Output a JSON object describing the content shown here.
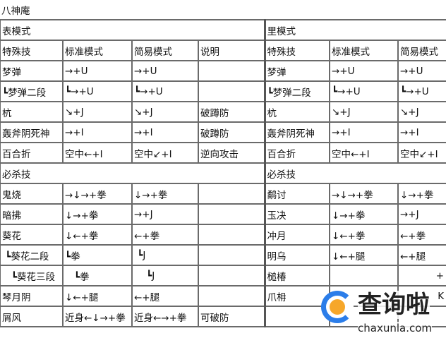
{
  "title": "八神庵",
  "left": {
    "mode": "表模式",
    "headers": [
      "特殊技",
      "标准模式",
      "简易模式",
      "说明"
    ],
    "special_rows": [
      [
        "梦弹",
        "→+U",
        "→+U",
        ""
      ],
      [
        "┗梦弹二段",
        "┗→+U",
        "┗→+U",
        ""
      ],
      [
        "杭",
        "↘+J",
        "↘+J",
        "破蹲防"
      ],
      [
        "轰斧阴死神",
        "→+I",
        "→+I",
        "破蹲防"
      ],
      [
        "百合折",
        "空中←+I",
        "空中↙+I",
        "逆向攻击"
      ]
    ],
    "super_label": "必杀技",
    "super_rows": [
      [
        "鬼烧",
        "→↓→+拳",
        "↓→+拳",
        ""
      ],
      [
        "暗拂",
        "↓→+拳",
        "→+J",
        ""
      ],
      [
        "葵花",
        "↓←+拳",
        "←+拳",
        ""
      ],
      [
        " ┗葵花二段",
        "┗拳",
        " ┗J",
        ""
      ],
      [
        "   ┗葵花三段",
        "   ┗拳",
        "    ┗J",
        ""
      ],
      [
        "琴月阴",
        "↓←+腿",
        "←+腿",
        ""
      ],
      [
        "屑风",
        "近身←↓→+拳",
        "近身←→+拳",
        "可破防"
      ]
    ]
  },
  "right": {
    "mode": "里模式",
    "headers": [
      "特殊技",
      "标准模式",
      "简易模式"
    ],
    "special_rows": [
      [
        "梦弹",
        "→+U",
        "→+U"
      ],
      [
        "┗梦弹二段",
        "┗→+U",
        "┗→+U"
      ],
      [
        "杭",
        "↘+J",
        "↘+J"
      ],
      [
        "轰斧阴死神",
        "→+I",
        "→+I"
      ],
      [
        "百合折",
        "空中←+I",
        "空中↙+I"
      ]
    ],
    "super_label": "必杀技",
    "super_rows": [
      [
        "鹬讨",
        "→↓→+拳",
        "↓→+拳"
      ],
      [
        "玉决",
        "↓→+拳",
        "→+J"
      ],
      [
        "冲月",
        "↓←+拳",
        "←+拳"
      ],
      [
        "明乌",
        "↓←+腿",
        "←+腿"
      ],
      [
        "槌椿",
        "",
        "+"
      ],
      [
        "爪枏",
        "",
        "K"
      ],
      [
        "",
        "",
        ""
      ]
    ]
  },
  "watermark": {
    "text": "查询啦",
    "url": "chaxunla.com"
  }
}
